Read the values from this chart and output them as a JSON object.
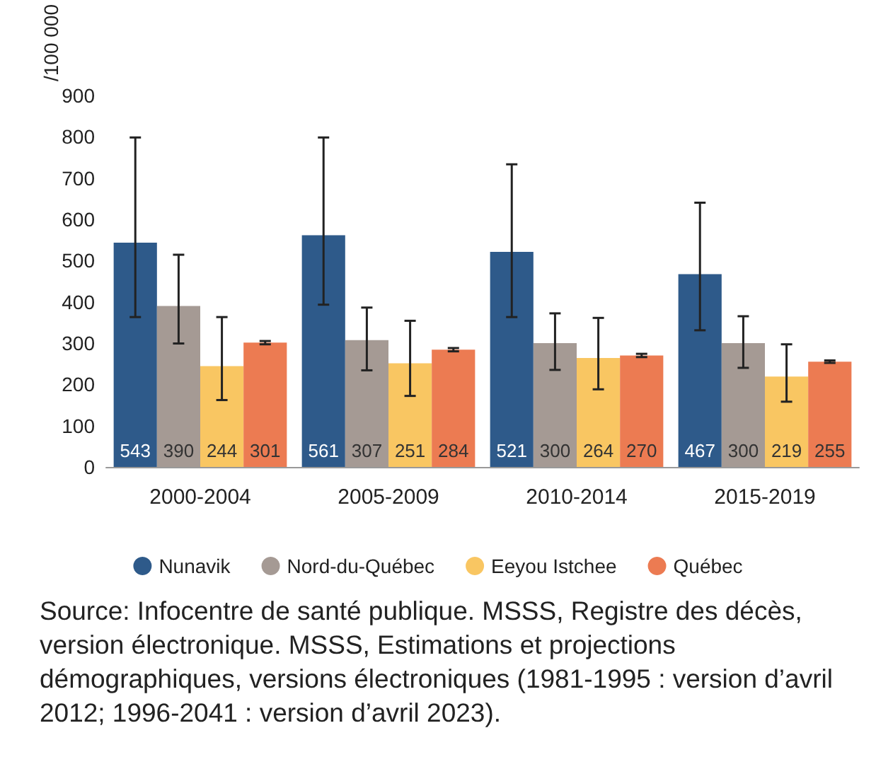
{
  "chart_data": {
    "type": "bar",
    "ylabel": "/100 000",
    "categories": [
      "2000-2004",
      "2005-2009",
      "2010-2014",
      "2015-2019"
    ],
    "series": [
      {
        "name": "Nunavik",
        "color": "#2e5a8a",
        "values": [
          543,
          561,
          521,
          467
        ],
        "errors": [
          [
            363,
            798
          ],
          [
            393,
            798
          ],
          [
            363,
            733
          ],
          [
            331,
            640
          ]
        ]
      },
      {
        "name": "Nord-du-Québec",
        "color": "#a59a94",
        "values": [
          390,
          307,
          300,
          300
        ],
        "errors": [
          [
            299,
            514
          ],
          [
            234,
            386
          ],
          [
            235,
            372
          ],
          [
            240,
            365
          ]
        ]
      },
      {
        "name": "Eeyou Istchee",
        "color": "#f9c662",
        "values": [
          244,
          251,
          264,
          219
        ],
        "errors": [
          [
            162,
            363
          ],
          [
            172,
            354
          ],
          [
            188,
            361
          ],
          [
            158,
            297
          ]
        ]
      },
      {
        "name": "Québec",
        "color": "#ec7b52",
        "values": [
          301,
          284,
          270,
          255
        ],
        "errors": [
          [
            297,
            305
          ],
          [
            280,
            288
          ],
          [
            266,
            274
          ],
          [
            252,
            258
          ]
        ]
      }
    ],
    "ylim": [
      0,
      900
    ],
    "yticks": [
      0,
      100,
      200,
      300,
      400,
      500,
      600,
      700,
      800,
      900
    ],
    "grid": false,
    "legend": "bottom",
    "data_labels": true,
    "annotations": [
      "Source: Infocentre de santé publique. MSSS, Registre des décès, version électronique. MSSS, Estimations et projections démographiques, versions électroniques (1981-1995 : version d’avril 2012; 1996-2041 : version d’avril 2023)."
    ]
  }
}
